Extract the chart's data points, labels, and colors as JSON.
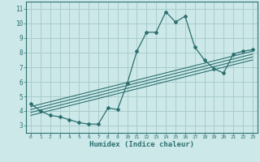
{
  "xlabel": "Humidex (Indice chaleur)",
  "bg_color": "#cce8e8",
  "line_color": "#2d7070",
  "grid_color": "#aacccc",
  "xlim": [
    -0.5,
    23.5
  ],
  "ylim": [
    2.5,
    11.5
  ],
  "xticks": [
    0,
    1,
    2,
    3,
    4,
    5,
    6,
    7,
    8,
    9,
    10,
    11,
    12,
    13,
    14,
    15,
    16,
    17,
    18,
    19,
    20,
    21,
    22,
    23
  ],
  "yticks": [
    3,
    4,
    5,
    6,
    7,
    8,
    9,
    10,
    11
  ],
  "main_x": [
    0,
    1,
    2,
    3,
    4,
    5,
    6,
    7,
    8,
    9,
    10,
    11,
    12,
    13,
    14,
    15,
    16,
    17,
    18,
    19,
    20,
    21,
    22,
    23
  ],
  "main_y": [
    4.5,
    4.0,
    3.7,
    3.6,
    3.4,
    3.2,
    3.1,
    3.1,
    4.2,
    4.1,
    5.9,
    8.1,
    9.4,
    9.4,
    10.8,
    10.1,
    10.5,
    8.4,
    7.5,
    6.9,
    6.6,
    7.9,
    8.1,
    8.2
  ],
  "trend_lines": [
    [
      3.7,
      7.5
    ],
    [
      3.9,
      7.7
    ],
    [
      4.1,
      7.9
    ],
    [
      4.3,
      8.1
    ]
  ]
}
